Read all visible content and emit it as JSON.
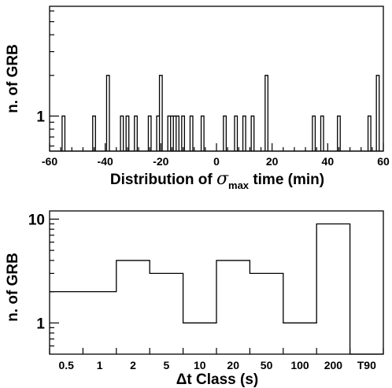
{
  "chart_data": [
    {
      "type": "bar",
      "subtype": "histogram",
      "xlabel_parts": [
        "Distribution of ",
        "σ",
        "max",
        " time (min)"
      ],
      "ylabel": "n. of GRB",
      "xlim": [
        -60,
        60
      ],
      "ylog": true,
      "ylim": [
        0.55,
        6.5
      ],
      "ytick_labels": [
        {
          "value": 1,
          "label": "1"
        }
      ],
      "xticks": [
        -60,
        -40,
        -20,
        0,
        20,
        40,
        60
      ],
      "xtick_labels": [
        "-60",
        "-40",
        "-20",
        "0",
        "20",
        "40",
        "60"
      ],
      "bin_width": 1,
      "bins": [
        {
          "x": -55,
          "value": 1
        },
        {
          "x": -44,
          "value": 1
        },
        {
          "x": -39,
          "value": 2
        },
        {
          "x": -34,
          "value": 1
        },
        {
          "x": -32,
          "value": 1
        },
        {
          "x": -29,
          "value": 1
        },
        {
          "x": -24,
          "value": 1
        },
        {
          "x": -21,
          "value": 1
        },
        {
          "x": -20,
          "value": 2
        },
        {
          "x": -17,
          "value": 1
        },
        {
          "x": -16,
          "value": 1
        },
        {
          "x": -15,
          "value": 1
        },
        {
          "x": -14,
          "value": 1
        },
        {
          "x": -12,
          "value": 1
        },
        {
          "x": -9,
          "value": 1
        },
        {
          "x": -5,
          "value": 1
        },
        {
          "x": 3,
          "value": 1
        },
        {
          "x": 7,
          "value": 1
        },
        {
          "x": 10,
          "value": 1
        },
        {
          "x": 13,
          "value": 1
        },
        {
          "x": 18,
          "value": 2
        },
        {
          "x": 35,
          "value": 1
        },
        {
          "x": 38,
          "value": 1
        },
        {
          "x": 44,
          "value": 1
        },
        {
          "x": 55,
          "value": 1
        },
        {
          "x": 58,
          "value": 2
        }
      ],
      "grid": false
    },
    {
      "type": "bar",
      "subtype": "step-histogram",
      "xlabel": "Δt Class (s)",
      "ylabel": "n. of GRB",
      "ylog": true,
      "ylim": [
        0.5,
        12
      ],
      "ytick_labels": [
        {
          "value": 1,
          "label": "1"
        },
        {
          "value": 10,
          "label": "10"
        }
      ],
      "categories": [
        "0.5",
        "1",
        "2",
        "5",
        "10",
        "20",
        "50",
        "100",
        "200",
        "T90"
      ],
      "values": [
        2,
        2,
        4,
        3,
        1,
        4,
        3,
        1,
        9,
        0
      ],
      "grid": false
    }
  ]
}
